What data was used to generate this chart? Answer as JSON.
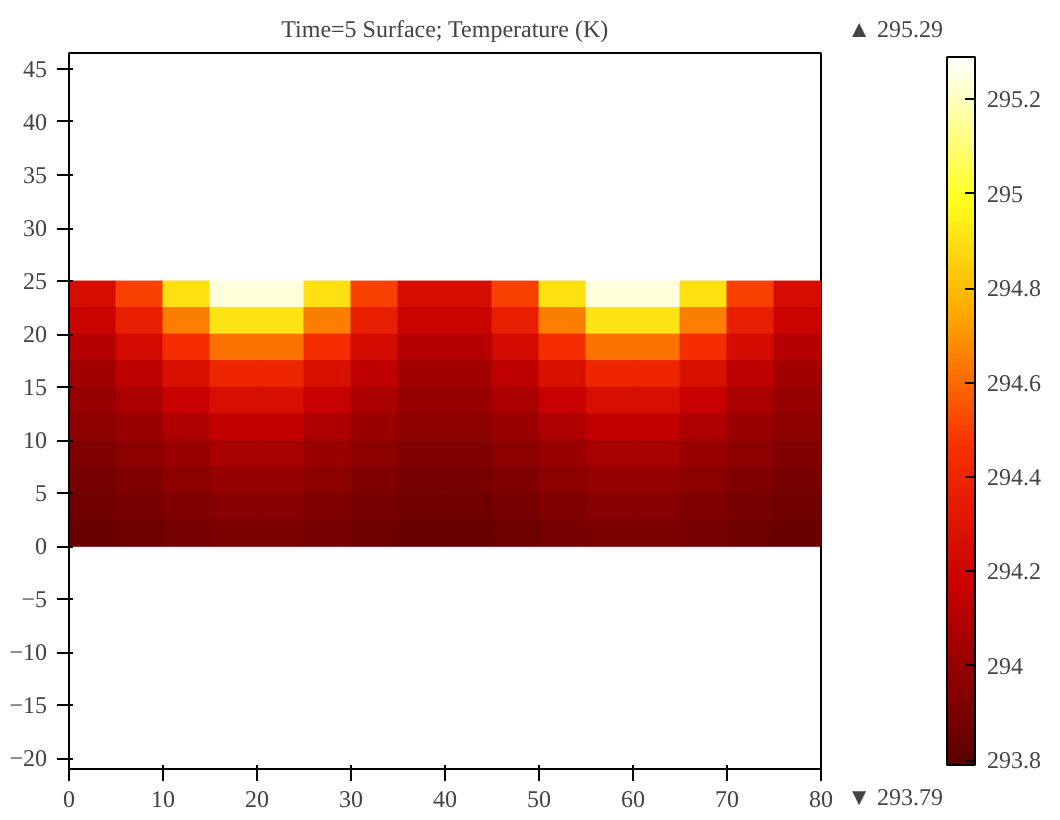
{
  "chart_data": {
    "type": "scatter",
    "title": "Time=5 Surface; Temperature (K)",
    "marker": "square",
    "x": [
      2.5,
      7.5,
      12.5,
      17.5,
      22.5,
      27.5,
      32.5,
      37.5,
      42.5,
      47.5,
      52.5,
      57.5,
      62.5,
      67.5,
      72.5,
      77.5,
      2.5,
      7.5,
      12.5,
      17.5,
      22.5,
      27.5,
      32.5,
      37.5,
      42.5,
      47.5,
      52.5,
      57.5,
      62.5,
      67.5,
      72.5,
      77.5,
      2.5,
      7.5,
      12.5,
      17.5,
      22.5,
      27.5,
      32.5,
      37.5,
      42.5,
      47.5,
      52.5,
      57.5,
      62.5,
      67.5,
      72.5,
      77.5,
      2.5,
      7.5,
      12.5,
      17.5,
      22.5,
      27.5,
      32.5,
      37.5,
      42.5,
      47.5,
      52.5,
      57.5,
      62.5,
      67.5,
      72.5,
      77.5,
      2.5,
      7.5,
      12.5,
      17.5,
      22.5,
      27.5,
      32.5,
      37.5,
      42.5,
      47.5,
      52.5,
      57.5,
      62.5,
      67.5,
      72.5,
      77.5,
      2.5,
      7.5,
      12.5,
      17.5,
      22.5,
      27.5,
      32.5,
      37.5,
      42.5,
      47.5,
      52.5,
      57.5,
      62.5,
      67.5,
      72.5,
      77.5,
      2.5,
      7.5,
      12.5,
      17.5,
      22.5,
      27.5,
      32.5,
      37.5,
      42.5,
      47.5,
      52.5,
      57.5,
      62.5,
      67.5,
      72.5,
      77.5,
      2.5,
      7.5,
      12.5,
      17.5,
      22.5,
      27.5,
      32.5,
      37.5,
      42.5,
      47.5,
      52.5,
      57.5,
      62.5,
      67.5,
      72.5,
      77.5,
      2.5,
      7.5,
      12.5,
      17.5,
      22.5,
      27.5,
      32.5,
      37.5,
      42.5,
      47.5,
      52.5,
      57.5,
      62.5,
      67.5,
      72.5,
      77.5,
      2.5,
      7.5,
      12.5,
      17.5,
      22.5,
      27.5,
      32.5,
      37.5,
      42.5,
      47.5,
      52.5,
      57.5,
      62.5,
      67.5,
      72.5,
      77.5
    ],
    "values": [
      23.75,
      23.75,
      23.75,
      23.75,
      23.75,
      23.75,
      23.75,
      23.75,
      23.75,
      23.75,
      23.75,
      23.75,
      23.75,
      23.75,
      23.75,
      23.75,
      21.25,
      21.25,
      21.25,
      21.25,
      21.25,
      21.25,
      21.25,
      21.25,
      21.25,
      21.25,
      21.25,
      21.25,
      21.25,
      21.25,
      21.25,
      21.25,
      18.75,
      18.75,
      18.75,
      18.75,
      18.75,
      18.75,
      18.75,
      18.75,
      18.75,
      18.75,
      18.75,
      18.75,
      18.75,
      18.75,
      18.75,
      18.75,
      16.25,
      16.25,
      16.25,
      16.25,
      16.25,
      16.25,
      16.25,
      16.25,
      16.25,
      16.25,
      16.25,
      16.25,
      16.25,
      16.25,
      16.25,
      16.25,
      13.75,
      13.75,
      13.75,
      13.75,
      13.75,
      13.75,
      13.75,
      13.75,
      13.75,
      13.75,
      13.75,
      13.75,
      13.75,
      13.75,
      13.75,
      13.75,
      11.25,
      11.25,
      11.25,
      11.25,
      11.25,
      11.25,
      11.25,
      11.25,
      11.25,
      11.25,
      11.25,
      11.25,
      11.25,
      11.25,
      11.25,
      11.25,
      8.75,
      8.75,
      8.75,
      8.75,
      8.75,
      8.75,
      8.75,
      8.75,
      8.75,
      8.75,
      8.75,
      8.75,
      8.75,
      8.75,
      8.75,
      8.75,
      6.25,
      6.25,
      6.25,
      6.25,
      6.25,
      6.25,
      6.25,
      6.25,
      6.25,
      6.25,
      6.25,
      6.25,
      6.25,
      6.25,
      6.25,
      6.25,
      3.75,
      3.75,
      3.75,
      3.75,
      3.75,
      3.75,
      3.75,
      3.75,
      3.75,
      3.75,
      3.75,
      3.75,
      3.75,
      3.75,
      3.75,
      3.75,
      1.25,
      1.25,
      1.25,
      1.25,
      1.25,
      1.25,
      1.25,
      1.25,
      1.25,
      1.25,
      1.25,
      1.25,
      1.25,
      1.25,
      1.25,
      1.25
    ],
    "cvalues": [
      294.25,
      294.5,
      294.9,
      295.24,
      295.24,
      294.9,
      294.5,
      294.25,
      294.25,
      294.5,
      294.9,
      295.24,
      295.24,
      294.9,
      294.5,
      294.25,
      294.18,
      294.36,
      294.65,
      294.91,
      294.91,
      294.65,
      294.36,
      294.18,
      294.18,
      294.36,
      294.65,
      294.91,
      294.91,
      294.65,
      294.36,
      294.18,
      294.1,
      294.23,
      294.44,
      294.62,
      294.62,
      294.44,
      294.23,
      294.1,
      294.1,
      294.23,
      294.44,
      294.62,
      294.62,
      294.44,
      294.23,
      294.1,
      294.04,
      294.13,
      294.27,
      294.4,
      294.4,
      294.27,
      294.13,
      294.04,
      294.04,
      294.13,
      294.27,
      294.4,
      294.4,
      294.27,
      294.13,
      294.04,
      294.0,
      294.06,
      294.17,
      294.26,
      294.26,
      294.17,
      294.06,
      294.0,
      294.0,
      294.06,
      294.17,
      294.26,
      294.26,
      294.17,
      294.06,
      294.0,
      293.96,
      294.01,
      294.08,
      294.15,
      294.15,
      294.08,
      294.01,
      293.96,
      293.96,
      294.01,
      294.08,
      294.15,
      294.15,
      294.08,
      294.01,
      293.96,
      293.92,
      293.96,
      294.01,
      294.06,
      294.06,
      294.01,
      293.96,
      293.92,
      293.92,
      293.96,
      294.01,
      294.06,
      294.06,
      294.01,
      293.96,
      293.92,
      293.89,
      293.92,
      293.96,
      293.99,
      293.99,
      293.96,
      293.92,
      293.89,
      293.89,
      293.92,
      293.96,
      293.99,
      293.99,
      293.96,
      293.92,
      293.89,
      293.87,
      293.89,
      293.92,
      293.95,
      293.95,
      293.92,
      293.89,
      293.87,
      293.87,
      293.89,
      293.92,
      293.95,
      293.95,
      293.92,
      293.89,
      293.87,
      293.85,
      293.86,
      293.89,
      293.91,
      293.91,
      293.89,
      293.86,
      293.85,
      293.85,
      293.86,
      293.89,
      293.91,
      293.91,
      293.89,
      293.86,
      293.85
    ],
    "clim": [
      293.79,
      295.29
    ],
    "cticks": [
      293.8,
      294,
      294.2,
      294.4,
      294.6,
      294.8,
      295,
      295.2
    ],
    "xlim": [
      0,
      80
    ],
    "xticks": [
      0,
      10,
      20,
      30,
      40,
      50,
      60,
      70,
      80
    ],
    "ylim": [
      -21,
      46.5
    ],
    "yticks": [
      -20,
      -15,
      -10,
      -5,
      0,
      5,
      10,
      15,
      20,
      25,
      30,
      35,
      40,
      45
    ],
    "annotations": [
      "▲ 295.29",
      "▼ 293.79"
    ]
  }
}
